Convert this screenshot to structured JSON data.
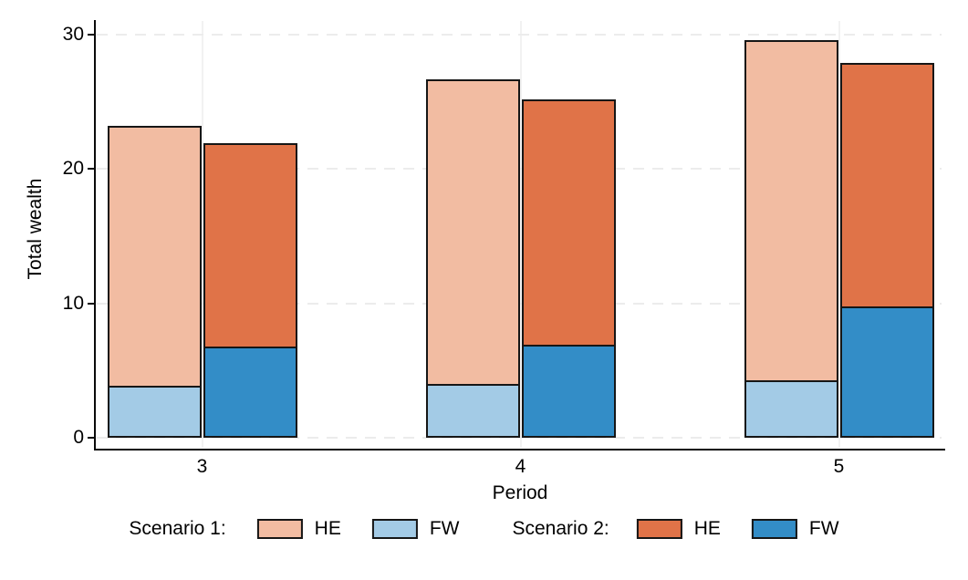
{
  "chart_data": {
    "type": "bar",
    "variant": "grouped-stacked",
    "title": "",
    "xlabel": "Period",
    "ylabel": "Total wealth",
    "categories": [
      "3",
      "4",
      "5"
    ],
    "ylim": [
      0,
      30
    ],
    "yticks": [
      0,
      10,
      20,
      30
    ],
    "grid": "horizontal dashed light-gray; faint solid vertical line at each category",
    "legend_position": "bottom",
    "bar_border_color": "#161616",
    "stacks": [
      {
        "name": "Scenario 1",
        "segments": [
          {
            "name": "FW",
            "color": "#a3cbe6",
            "values": [
              3.9,
              4.0,
              4.3
            ]
          },
          {
            "name": "HE",
            "color": "#f2bca2",
            "values": [
              19.3,
              22.7,
              25.3
            ]
          }
        ],
        "totals": [
          23.2,
          26.7,
          29.6
        ]
      },
      {
        "name": "Scenario 2",
        "segments": [
          {
            "name": "FW",
            "color": "#338dc7",
            "values": [
              6.8,
              6.9,
              9.8
            ]
          },
          {
            "name": "HE",
            "color": "#e07348",
            "values": [
              15.1,
              18.3,
              18.1
            ]
          }
        ],
        "totals": [
          21.9,
          25.2,
          27.9
        ]
      }
    ]
  },
  "axes": {
    "ylabel": "Total wealth",
    "xlabel": "Period"
  },
  "legend": {
    "group1_label": "Scenario 1:",
    "group1_he_label": "HE",
    "group1_fw_label": "FW",
    "group2_label": "Scenario 2:",
    "group2_he_label": "HE",
    "group2_fw_label": "FW"
  }
}
